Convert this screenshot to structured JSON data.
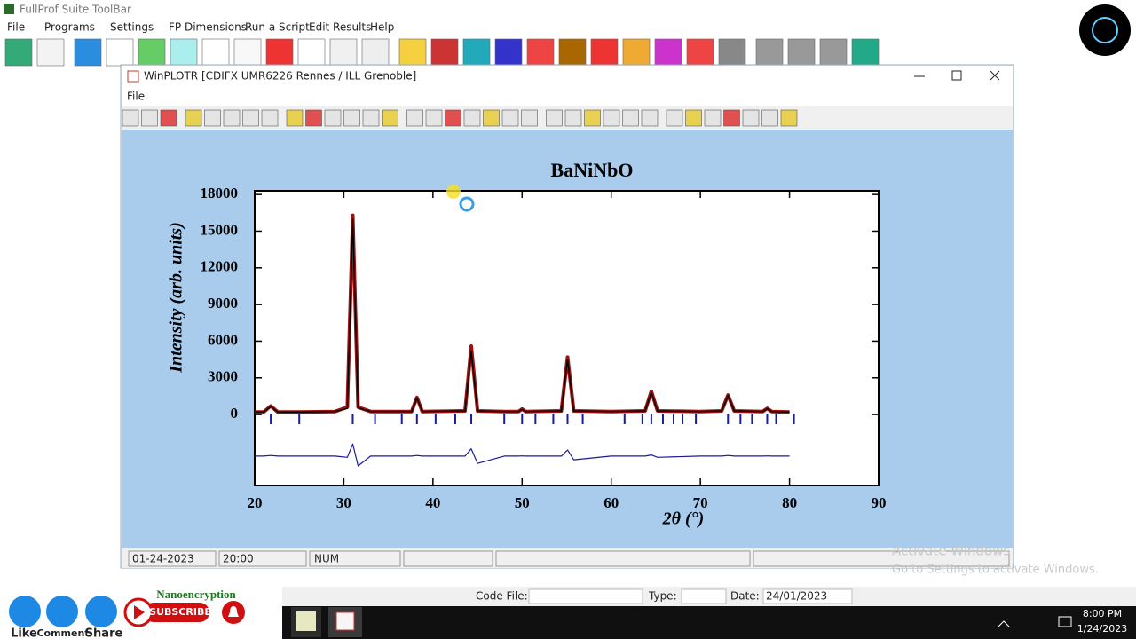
{
  "app": {
    "title": "FullProf Suite ToolBar",
    "menu": [
      "File",
      "Programs",
      "Settings",
      "FP Dimensions",
      "Run a Script",
      "Edit Results",
      "Help"
    ]
  },
  "window": {
    "title": "WinPLOTR [CDIFX UMR6226 Rennes / ILL Grenoble]",
    "menu": [
      "File"
    ]
  },
  "chart_data": {
    "type": "line",
    "title": "BaNiNbO",
    "x_label": "2θ (°)",
    "y_label": "Intensity (arb. units)",
    "xlim": [
      20,
      90
    ],
    "xticks": [
      20,
      30,
      40,
      50,
      60,
      70,
      80,
      90
    ],
    "ylim": [
      -5800,
      18300
    ],
    "yticks": [
      0,
      3000,
      6000,
      9000,
      12000,
      15000,
      18000
    ],
    "x": [
      20,
      21,
      21.8,
      22.6,
      25,
      29,
      30.4,
      31.0,
      31.6,
      33,
      37.6,
      38.2,
      38.8,
      43.6,
      44.3,
      45,
      48,
      49.6,
      50,
      50.4,
      54.4,
      55.1,
      55.8,
      60,
      63.8,
      64.5,
      65.2,
      70,
      72.4,
      73.1,
      73.8,
      77,
      77.5,
      78,
      80
    ],
    "series": [
      {
        "color": "#a01010",
        "values": [
          200,
          200,
          700,
          200,
          200,
          250,
          600,
          16300,
          600,
          250,
          250,
          1400,
          250,
          300,
          5600,
          300,
          250,
          250,
          450,
          250,
          300,
          4700,
          300,
          250,
          300,
          1900,
          300,
          250,
          300,
          1600,
          300,
          250,
          500,
          250,
          200
        ]
      },
      {
        "color": "#000000",
        "values": [
          200,
          200,
          650,
          200,
          200,
          250,
          500,
          16000,
          550,
          250,
          250,
          1350,
          250,
          300,
          5200,
          300,
          250,
          250,
          420,
          250,
          300,
          4500,
          300,
          250,
          300,
          1800,
          300,
          250,
          300,
          1550,
          300,
          250,
          480,
          250,
          200
        ]
      },
      {
        "color": "#1a1a9c",
        "values": [
          -3400,
          -3400,
          -3350,
          -3400,
          -3400,
          -3400,
          -3500,
          -2400,
          -4200,
          -3400,
          -3400,
          -3350,
          -3400,
          -3400,
          -2800,
          -4000,
          -3400,
          -3400,
          -3380,
          -3400,
          -3400,
          -2900,
          -3700,
          -3400,
          -3400,
          -3300,
          -3500,
          -3400,
          -3400,
          -3350,
          -3400,
          -3400,
          -3380,
          -3400,
          -3400
        ]
      }
    ],
    "reflections": [
      21.8,
      25,
      31.0,
      33.5,
      36.5,
      38.2,
      40.3,
      42.5,
      44.3,
      48,
      50,
      51.5,
      53.5,
      55.1,
      56.8,
      61.5,
      63.5,
      64.5,
      65.8,
      67,
      68,
      69.5,
      73.1,
      74.5,
      75.8,
      77.5,
      78.5,
      80.5
    ],
    "reflection_color": "#1a1a9c"
  },
  "status": [
    "01-24-2023",
    "20:00",
    "NUM"
  ],
  "info_bar": {
    "code_file": "Code File:",
    "type": "Type:",
    "date_label": "Date:",
    "date": "24/01/2023"
  },
  "watermark": [
    "Activate Windows",
    "Go to Settings to activate Windows."
  ],
  "taskbar": {
    "time": "8:00 PM",
    "date": "1/24/2023"
  },
  "overlay": {
    "channel": "Nanoencryption",
    "subscribe": "SUBSCRIBE",
    "actions": [
      "Like",
      "Comment",
      "Share"
    ]
  }
}
